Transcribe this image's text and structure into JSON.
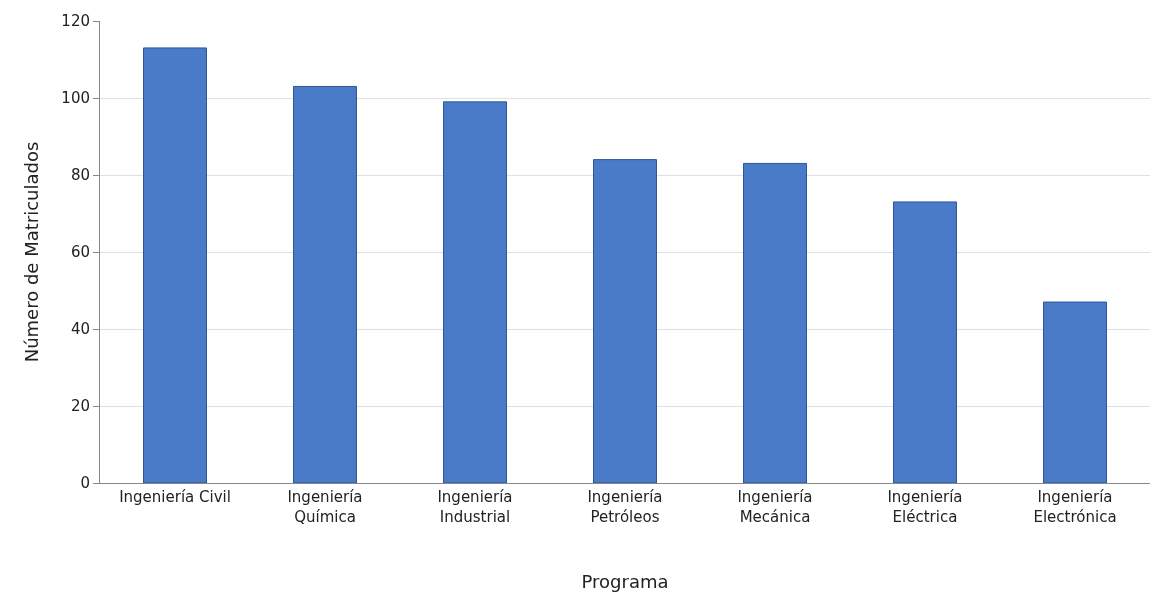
{
  "chart_data": {
    "type": "bar",
    "xlabel": "Programa",
    "ylabel": "Número de Matriculados",
    "categories": [
      "Ingeniería Civil",
      "Ingeniería\nQuímica",
      "Ingeniería\nIndustrial",
      "Ingeniería\nPetróleos",
      "Ingeniería\nMecánica",
      "Ingeniería\nEléctrica",
      "Ingeniería\nElectrónica"
    ],
    "values": [
      113,
      103,
      99,
      84,
      83,
      73,
      47
    ],
    "color": "#4a7bc8",
    "ylim": [
      0,
      120
    ],
    "yticks": [
      0,
      20,
      40,
      60,
      80,
      100,
      120
    ],
    "grid": "y"
  }
}
